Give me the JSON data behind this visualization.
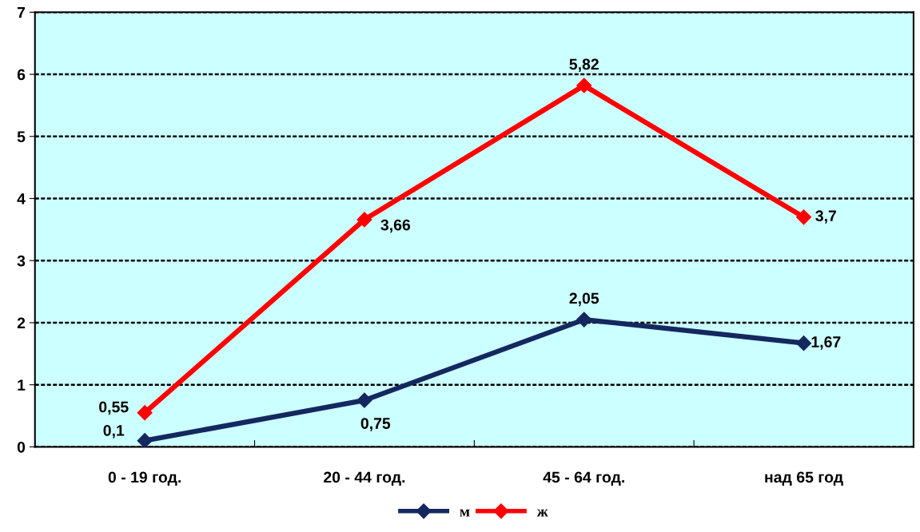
{
  "chart_data": {
    "type": "line",
    "categories": [
      "0 - 19 год.",
      "20 - 44 год.",
      "45 - 64 год.",
      "над 65 год"
    ],
    "series": [
      {
        "name": "м",
        "color": "#14285f",
        "values": [
          0.1,
          0.75,
          2.05,
          1.67
        ],
        "value_labels": [
          "0,1",
          "0,75",
          "2,05",
          "1,67"
        ]
      },
      {
        "name": "ж",
        "color": "#ff0000",
        "values": [
          0.55,
          3.66,
          5.82,
          3.7
        ],
        "value_labels": [
          "0,55",
          "3,66",
          "5,82",
          "3,7"
        ]
      }
    ],
    "ylim": [
      0,
      7
    ],
    "yticks": [
      0,
      1,
      2,
      3,
      4,
      5,
      6,
      7
    ],
    "grid": "y",
    "legend": "bottom",
    "marker": "diamond",
    "line_style": "solid"
  }
}
